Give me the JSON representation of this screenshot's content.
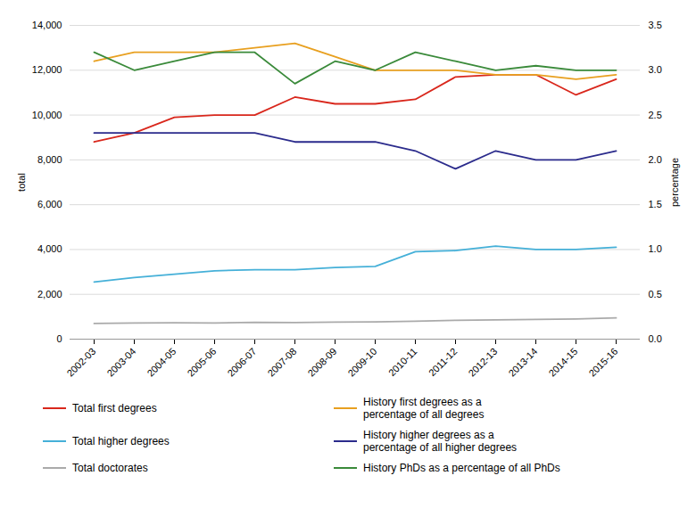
{
  "chart_data": {
    "type": "line",
    "categories": [
      "2002-03",
      "2003-04",
      "2004-05",
      "2005-06",
      "2006-07",
      "2007-08",
      "2008-09",
      "2009-10",
      "2010-11",
      "2011-12",
      "2012-13",
      "2013-14",
      "2014-15",
      "2015-16"
    ],
    "series": [
      {
        "name": "Total first degrees",
        "color": "#d9271c",
        "values": [
          8800,
          9200,
          9900,
          10000,
          10000,
          10800,
          10500,
          10500,
          10700,
          11700,
          11800,
          11800,
          10900,
          11600
        ]
      },
      {
        "name": "Total higher degrees",
        "color": "#45b0d8",
        "values": [
          2550,
          2750,
          2900,
          3050,
          3100,
          3100,
          3200,
          3250,
          3900,
          3950,
          4150,
          4000,
          4000,
          4100
        ]
      },
      {
        "name": "Total doctorates",
        "color": "#aaaaaa",
        "values": [
          700,
          720,
          730,
          720,
          750,
          740,
          760,
          770,
          800,
          840,
          860,
          880,
          900,
          950
        ]
      },
      {
        "name": "History first degrees as a\npercentage of all degrees",
        "color": "#e8a020",
        "axis": "y2",
        "values": [
          3.1,
          3.2,
          3.2,
          3.2,
          3.25,
          3.3,
          3.15,
          3.0,
          3.0,
          3.0,
          2.95,
          2.95,
          2.9,
          2.95
        ]
      },
      {
        "name": "History higher degrees as a\npercentage of all higher degrees",
        "color": "#2b2b8c",
        "axis": "y2",
        "values": [
          2.3,
          2.3,
          2.3,
          2.3,
          2.3,
          2.2,
          2.2,
          2.2,
          2.1,
          1.9,
          2.1,
          2.0,
          2.0,
          2.1
        ]
      },
      {
        "name": "History PhDs as a percentage of all PhDs",
        "color": "#3a8a3a",
        "axis": "y2",
        "values": [
          3.2,
          3.0,
          3.1,
          3.2,
          3.2,
          2.85,
          3.1,
          3.0,
          3.2,
          3.1,
          3.0,
          3.05,
          3.0,
          3.0
        ]
      }
    ],
    "ylabel": "total",
    "y2label": "percentage",
    "ylim": [
      0,
      14000
    ],
    "yticks": [
      0,
      {
        "value": 2000,
        "label": "2,000"
      },
      {
        "value": 4000,
        "label": "4,000"
      },
      {
        "value": 6000,
        "label": "6,000"
      },
      {
        "value": 8000,
        "label": "8,000"
      },
      {
        "value": 10000,
        "label": "10,000"
      },
      {
        "value": 12000,
        "label": "12,000"
      },
      {
        "value": 14000,
        "label": "14,000"
      }
    ],
    "y2lim": [
      0,
      3.5
    ],
    "y2ticks": [
      {
        "value": 0,
        "label": "0.0"
      },
      0.5,
      {
        "value": 1,
        "label": "1.0"
      },
      1.5,
      {
        "value": 2,
        "label": "2.0"
      },
      2.5,
      {
        "value": 3,
        "label": "3.0"
      },
      3.5
    ],
    "grid": true,
    "legend": "bottom"
  }
}
